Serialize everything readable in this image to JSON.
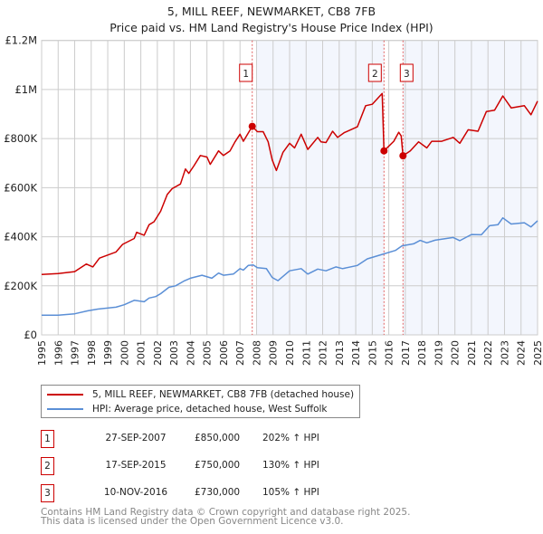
{
  "title_line1": "5, MILL REEF, NEWMARKET, CB8 7FB",
  "title_line2": "Price paid vs. HM Land Registry's House Price Index (HPI)",
  "chart_data": {
    "type": "line",
    "xlim": [
      1995,
      2025
    ],
    "ylim": [
      0,
      1200000
    ],
    "x_ticks": [
      1995,
      1996,
      1997,
      1998,
      1999,
      2000,
      2001,
      2002,
      2003,
      2004,
      2005,
      2006,
      2007,
      2008,
      2009,
      2010,
      2011,
      2012,
      2013,
      2014,
      2015,
      2016,
      2017,
      2018,
      2019,
      2020,
      2021,
      2022,
      2023,
      2024,
      2025
    ],
    "y_ticks": [
      {
        "v": 0,
        "label": "£0"
      },
      {
        "v": 200000,
        "label": "£200K"
      },
      {
        "v": 400000,
        "label": "£400K"
      },
      {
        "v": 600000,
        "label": "£600K"
      },
      {
        "v": 800000,
        "label": "£800K"
      },
      {
        "v": 1000000,
        "label": "£1M"
      },
      {
        "v": 1200000,
        "label": "£1.2M"
      }
    ],
    "grid": true,
    "shaded_ranges": [
      [
        2008.0,
        2015.71
      ],
      [
        2016.86,
        2025.0
      ]
    ],
    "series": [
      {
        "name": "5, MILL REEF, NEWMARKET, CB8 7FB (detached house)",
        "color": "#cc0000",
        "points": [
          [
            1995.0,
            246000
          ],
          [
            1996.0,
            250000
          ],
          [
            1997.0,
            258000
          ],
          [
            1997.7,
            289000
          ],
          [
            1998.1,
            277000
          ],
          [
            1998.5,
            313000
          ],
          [
            1999.5,
            338000
          ],
          [
            1999.9,
            369000
          ],
          [
            2000.6,
            393000
          ],
          [
            2000.75,
            418000
          ],
          [
            2001.2,
            406000
          ],
          [
            2001.5,
            449000
          ],
          [
            2001.8,
            461000
          ],
          [
            2002.2,
            504000
          ],
          [
            2002.6,
            572000
          ],
          [
            2002.9,
            596000
          ],
          [
            2003.4,
            615000
          ],
          [
            2003.7,
            676000
          ],
          [
            2003.9,
            658000
          ],
          [
            2004.2,
            688000
          ],
          [
            2004.6,
            731000
          ],
          [
            2005.0,
            725000
          ],
          [
            2005.2,
            695000
          ],
          [
            2005.7,
            750000
          ],
          [
            2006.0,
            731000
          ],
          [
            2006.4,
            750000
          ],
          [
            2006.7,
            787000
          ],
          [
            2007.0,
            818000
          ],
          [
            2007.2,
            789000
          ],
          [
            2007.74,
            850000
          ],
          [
            2008.05,
            828000
          ],
          [
            2008.4,
            828000
          ],
          [
            2008.7,
            787000
          ],
          [
            2008.95,
            713000
          ],
          [
            2009.2,
            670000
          ],
          [
            2009.6,
            744000
          ],
          [
            2010.0,
            781000
          ],
          [
            2010.3,
            762000
          ],
          [
            2010.7,
            818000
          ],
          [
            2011.1,
            756000
          ],
          [
            2011.7,
            805000
          ],
          [
            2011.9,
            787000
          ],
          [
            2012.2,
            784000
          ],
          [
            2012.6,
            830000
          ],
          [
            2012.9,
            805000
          ],
          [
            2013.3,
            824000
          ],
          [
            2014.1,
            848000
          ],
          [
            2014.6,
            934000
          ],
          [
            2015.0,
            940000
          ],
          [
            2015.6,
            984000
          ],
          [
            2015.71,
            750000
          ],
          [
            2016.3,
            789000
          ],
          [
            2016.6,
            826000
          ],
          [
            2016.75,
            811000
          ],
          [
            2016.86,
            730000
          ],
          [
            2017.3,
            750000
          ],
          [
            2017.8,
            787000
          ],
          [
            2018.3,
            762000
          ],
          [
            2018.6,
            789000
          ],
          [
            2019.2,
            789000
          ],
          [
            2019.9,
            805000
          ],
          [
            2020.3,
            781000
          ],
          [
            2020.8,
            836000
          ],
          [
            2021.4,
            830000
          ],
          [
            2021.9,
            910000
          ],
          [
            2022.4,
            916000
          ],
          [
            2022.9,
            974000
          ],
          [
            2023.4,
            925000
          ],
          [
            2024.2,
            934000
          ],
          [
            2024.6,
            897000
          ],
          [
            2025.0,
            953000
          ]
        ]
      },
      {
        "name": "HPI: Average price, detached house, West Suffolk",
        "color": "#5b8fd6",
        "points": [
          [
            1995.0,
            80000
          ],
          [
            1996.0,
            80000
          ],
          [
            1997.0,
            86000
          ],
          [
            1997.8,
            98000
          ],
          [
            1998.4,
            105000
          ],
          [
            1999.5,
            113000
          ],
          [
            2000.0,
            123000
          ],
          [
            2000.6,
            141000
          ],
          [
            2001.2,
            135000
          ],
          [
            2001.5,
            150000
          ],
          [
            2001.9,
            156000
          ],
          [
            2002.2,
            168000
          ],
          [
            2002.7,
            194000
          ],
          [
            2003.1,
            200000
          ],
          [
            2003.6,
            219000
          ],
          [
            2004.0,
            231000
          ],
          [
            2004.7,
            243000
          ],
          [
            2005.3,
            231000
          ],
          [
            2005.7,
            252000
          ],
          [
            2006.0,
            243000
          ],
          [
            2006.6,
            248000
          ],
          [
            2007.0,
            270000
          ],
          [
            2007.2,
            264000
          ],
          [
            2007.5,
            283000
          ],
          [
            2007.8,
            285000
          ],
          [
            2008.05,
            274000
          ],
          [
            2008.6,
            270000
          ],
          [
            2008.95,
            234000
          ],
          [
            2009.3,
            221000
          ],
          [
            2010.0,
            261000
          ],
          [
            2010.7,
            270000
          ],
          [
            2011.1,
            248000
          ],
          [
            2011.7,
            268000
          ],
          [
            2012.2,
            261000
          ],
          [
            2012.8,
            277000
          ],
          [
            2013.2,
            270000
          ],
          [
            2014.1,
            283000
          ],
          [
            2014.7,
            310000
          ],
          [
            2015.5,
            326000
          ],
          [
            2016.4,
            344000
          ],
          [
            2016.8,
            363000
          ],
          [
            2017.5,
            371000
          ],
          [
            2017.9,
            385000
          ],
          [
            2018.3,
            375000
          ],
          [
            2018.8,
            386000
          ],
          [
            2019.9,
            397000
          ],
          [
            2020.3,
            384000
          ],
          [
            2021.0,
            409000
          ],
          [
            2021.6,
            408000
          ],
          [
            2022.1,
            445000
          ],
          [
            2022.6,
            449000
          ],
          [
            2022.9,
            477000
          ],
          [
            2023.4,
            452000
          ],
          [
            2024.2,
            457000
          ],
          [
            2024.6,
            440000
          ],
          [
            2025.0,
            465000
          ]
        ]
      }
    ],
    "sales": [
      {
        "n": "1",
        "date": "27-SEP-2007",
        "x": 2007.74,
        "price": "£850,000",
        "value": 850000,
        "hpi": "202% ↑ HPI"
      },
      {
        "n": "2",
        "date": "17-SEP-2015",
        "x": 2015.71,
        "price": "£750,000",
        "value": 750000,
        "hpi": "130% ↑ HPI"
      },
      {
        "n": "3",
        "date": "10-NOV-2016",
        "x": 2016.86,
        "price": "£730,000",
        "value": 730000,
        "hpi": "105% ↑ HPI"
      }
    ]
  },
  "legend": {
    "property": "5, MILL REEF, NEWMARKET, CB8 7FB (detached house)",
    "hpi": "HPI: Average price, detached house, West Suffolk"
  },
  "footer_line1": "Contains HM Land Registry data © Crown copyright and database right 2025.",
  "footer_line2": "This data is licensed under the Open Government Licence v3.0."
}
